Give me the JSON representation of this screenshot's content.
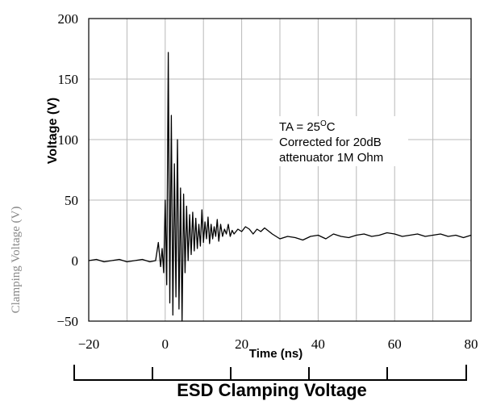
{
  "chart_data": {
    "type": "line",
    "title": "",
    "xlabel": "Time (ns)",
    "ylabel": "Voltage (V)",
    "ylabel_secondary": "Clamping Voltage (V)",
    "caption": "ESD Clamping Voltage",
    "xlim": [
      -20,
      80
    ],
    "ylim": [
      -50,
      200
    ],
    "x_ticks": [
      -20,
      0,
      20,
      40,
      60,
      80
    ],
    "y_ticks": [
      -50,
      0,
      50,
      100,
      150,
      200
    ],
    "grid": true,
    "line_color": "#000000",
    "annotation": {
      "line1_prefix": "TA = 25",
      "line1_sup": "O",
      "line1_suffix": "C",
      "line2": "Corrected for 20dB",
      "line3": "attenuator 1M Ohm"
    },
    "series": [
      {
        "x": [
          -20,
          -18,
          -16,
          -14,
          -12,
          -10,
          -8,
          -6,
          -4,
          -2.5,
          -1.8,
          -1.2,
          -0.8,
          -0.4,
          0,
          0.4,
          0.8,
          1.2,
          1.6,
          2.0,
          2.4,
          2.8,
          3.2,
          3.6,
          4.0,
          4.4,
          4.8,
          5.2,
          5.6,
          6.0,
          6.4,
          6.8,
          7.2,
          7.6,
          8.0,
          8.4,
          8.8,
          9.2,
          9.6,
          10.0,
          10.4,
          10.8,
          11.2,
          11.6,
          12.0,
          12.4,
          12.8,
          13.2,
          13.6,
          14.0,
          14.5,
          15.0,
          15.5,
          16.0,
          16.5,
          17.0,
          17.5,
          18.0,
          19,
          20,
          21,
          22,
          23,
          24,
          25,
          26,
          28,
          30,
          32,
          34,
          36,
          38,
          40,
          42,
          44,
          46,
          48,
          50,
          52,
          54,
          56,
          58,
          60,
          62,
          64,
          66,
          68,
          70,
          72,
          74,
          76,
          78,
          80
        ],
        "y": [
          0,
          1,
          -1,
          0,
          1,
          -1,
          0,
          1,
          -1,
          0,
          15,
          -5,
          10,
          -10,
          50,
          -20,
          172,
          -35,
          120,
          -45,
          80,
          -30,
          100,
          -40,
          60,
          -50,
          55,
          -10,
          45,
          0,
          38,
          5,
          40,
          8,
          35,
          10,
          30,
          12,
          42,
          15,
          32,
          18,
          36,
          14,
          30,
          18,
          28,
          20,
          34,
          16,
          30,
          20,
          26,
          22,
          30,
          20,
          25,
          22,
          26,
          24,
          28,
          26,
          22,
          26,
          24,
          27,
          22,
          18,
          20,
          19,
          17,
          20,
          21,
          18,
          22,
          20,
          19,
          21,
          22,
          20,
          21,
          23,
          22,
          20,
          21,
          22,
          20,
          21,
          22,
          20,
          21,
          19,
          21
        ]
      }
    ]
  }
}
